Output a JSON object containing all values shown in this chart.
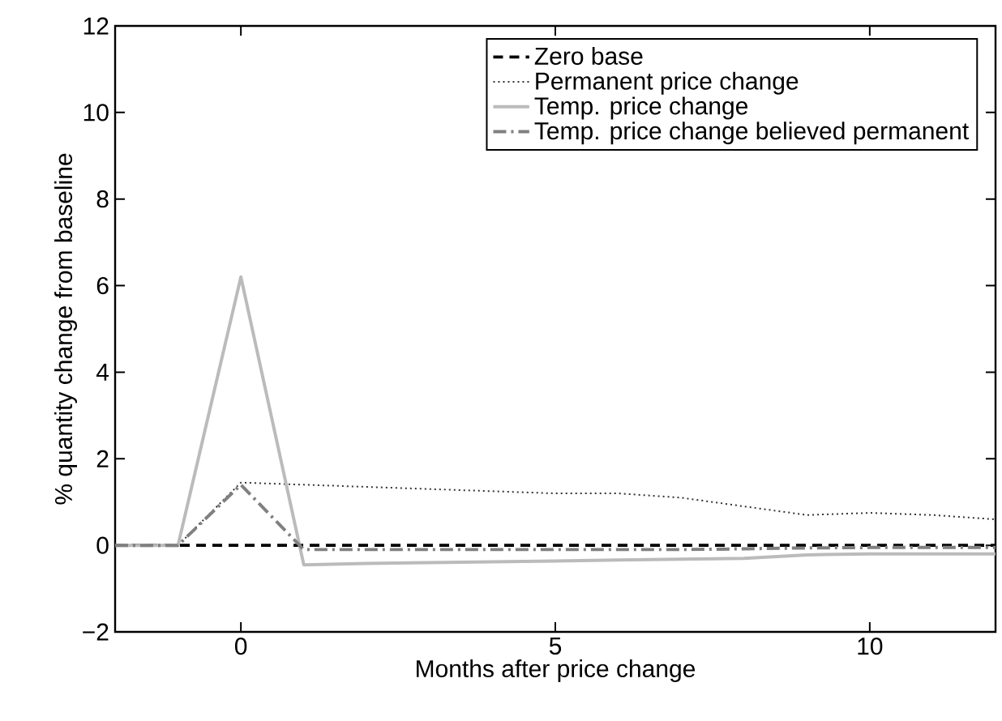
{
  "chart_data": {
    "type": "line",
    "xlabel": "Months after price change",
    "ylabel": "% quantity change from baseline",
    "x": [
      -2,
      -1,
      0,
      1,
      2,
      3,
      4,
      5,
      6,
      7,
      8,
      9,
      10,
      11,
      12
    ],
    "series": [
      {
        "name": "Zero base",
        "color": "#000000",
        "line_style": "dashed",
        "values": [
          0,
          0,
          0,
          0,
          0,
          0,
          0,
          0,
          0,
          0,
          0,
          0,
          0,
          0,
          0
        ]
      },
      {
        "name": "Permanent price change",
        "color": "#333333",
        "line_style": "dotted",
        "values": [
          0,
          0,
          1.45,
          1.4,
          1.35,
          1.3,
          1.25,
          1.2,
          1.2,
          1.1,
          0.9,
          0.7,
          0.75,
          0.7,
          0.6
        ]
      },
      {
        "name": "Temp. price change",
        "color": "#bbbbbb",
        "line_style": "solid",
        "values": [
          0,
          0,
          6.2,
          -0.45,
          -0.42,
          -0.4,
          -0.38,
          -0.36,
          -0.34,
          -0.32,
          -0.3,
          -0.22,
          -0.2,
          -0.2,
          -0.2
        ]
      },
      {
        "name": "Temp. price change believed permanent",
        "color": "#808080",
        "line_style": "dashdotted",
        "values": [
          0,
          0,
          1.4,
          -0.1,
          -0.1,
          -0.1,
          -0.1,
          -0.1,
          -0.1,
          -0.1,
          -0.08,
          -0.06,
          -0.05,
          -0.05,
          -0.05
        ]
      }
    ],
    "xlim": [
      -2,
      12
    ],
    "ylim": [
      -2,
      12
    ],
    "xticks": [
      0,
      5,
      10
    ],
    "yticks": [
      {
        "value": -2,
        "label": "−2"
      },
      0,
      2,
      4,
      6,
      8,
      10,
      12
    ],
    "legend": "top right",
    "grid": false
  }
}
